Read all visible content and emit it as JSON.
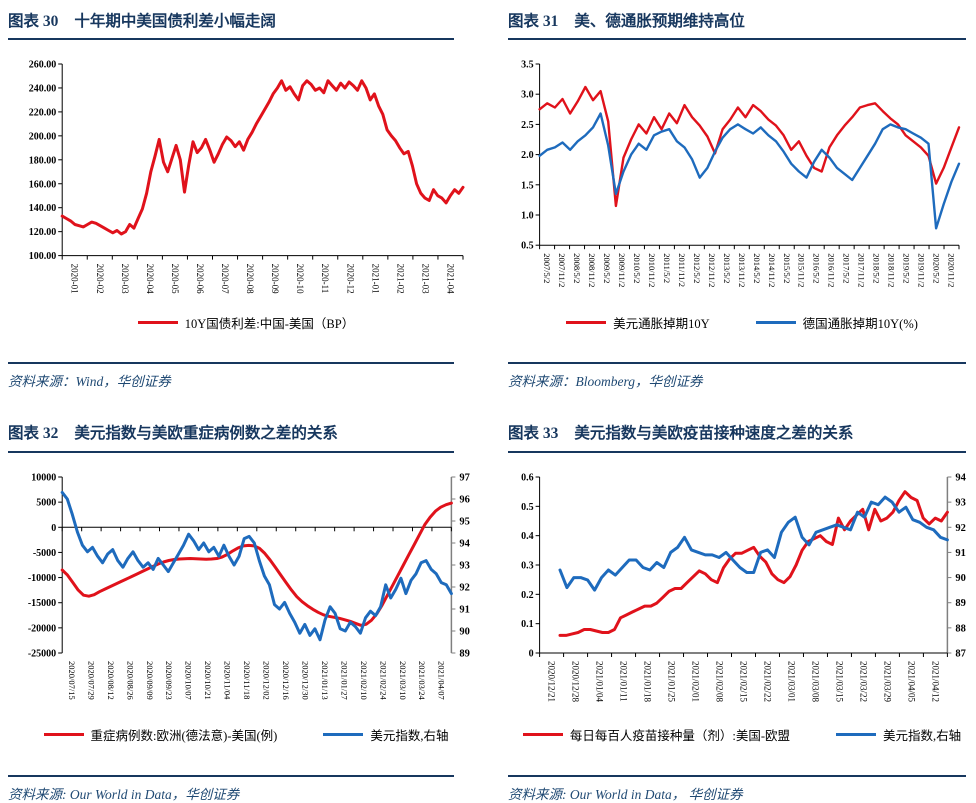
{
  "colors": {
    "title_navy": "#17375e",
    "source_navy": "#1f4973",
    "series_red": "#e0121b",
    "series_blue": "#1e6bbd",
    "right_axis_gray": "#7f7f7f"
  },
  "chart_data": [
    {
      "id": "c30",
      "type": "line",
      "panel_label": "图表 30",
      "title": "十年期中美国债利差小幅走阔",
      "source": "资料来源：Wind，华创证券",
      "legend_position": "bottom",
      "x_axis_at": "bottom",
      "x_tick_labels": [
        "2020-01",
        "2020-02",
        "2020-03",
        "2020-04",
        "2020-05",
        "2020-06",
        "2020-07",
        "2020-08",
        "2020-09",
        "2020-10",
        "2020-11",
        "2020-12",
        "2021-01",
        "2021-02",
        "2021-03",
        "2021-04"
      ],
      "y_left": {
        "min": 100,
        "max": 260,
        "step": 20,
        "labels": [
          "260.00",
          "240.00",
          "220.00",
          "200.00",
          "180.00",
          "160.00",
          "140.00",
          "120.00",
          "100.00"
        ]
      },
      "y_right": null,
      "series": [
        {
          "name": "10Y国债利差:中国-美国（BP）",
          "color": "#e0121b",
          "axis": "left",
          "width": 3,
          "values": [
            133,
            131,
            129,
            126,
            125,
            124,
            126,
            128,
            127,
            125,
            123,
            121,
            119,
            121,
            118,
            120,
            126,
            123,
            131,
            139,
            152,
            170,
            183,
            197,
            178,
            170,
            181,
            192,
            180,
            153,
            176,
            195,
            186,
            190,
            197,
            188,
            178,
            185,
            193,
            199,
            196,
            191,
            195,
            188,
            197,
            203,
            210,
            216,
            222,
            228,
            235,
            240,
            246,
            238,
            241,
            235,
            230,
            242,
            246,
            243,
            238,
            240,
            236,
            246,
            242,
            238,
            244,
            240,
            245,
            242,
            238,
            246,
            240,
            230,
            235,
            225,
            218,
            205,
            200,
            196,
            190,
            185,
            187,
            175,
            160,
            152,
            148,
            146,
            155,
            150,
            148,
            144,
            150,
            155,
            152,
            157
          ]
        }
      ]
    },
    {
      "id": "c31",
      "type": "line",
      "panel_label": "图表 31",
      "title": "美、德通胀预期维持高位",
      "source": "资料来源：Bloomberg，华创证券",
      "legend_position": "bottom",
      "x_axis_at": "bottom",
      "x_tick_labels": [
        "2007/5/2",
        "2007/11/2",
        "2008/5/2",
        "2008/11/2",
        "2009/5/2",
        "2009/11/2",
        "2010/5/2",
        "2010/11/2",
        "2011/5/2",
        "2011/11/2",
        "2012/5/2",
        "2012/11/2",
        "2013/5/2",
        "2013/11/2",
        "2014/5/2",
        "2014/11/2",
        "2015/5/2",
        "2015/11/2",
        "2016/5/2",
        "2016/11/2",
        "2017/5/2",
        "2017/11/2",
        "2018/5/2",
        "2018/11/2",
        "2019/5/2",
        "2019/11/2",
        "2020/5/2",
        "2020/11/2"
      ],
      "y_left": {
        "min": 0.5,
        "max": 3.5,
        "step": 0.5,
        "labels": [
          "3.5",
          "3.0",
          "2.5",
          "2.0",
          "1.5",
          "1.0",
          "0.5"
        ]
      },
      "y_right": null,
      "series": [
        {
          "name": "美元通胀掉期10Y",
          "color": "#e0121b",
          "axis": "left",
          "width": 2.4,
          "values": [
            2.75,
            2.85,
            2.78,
            2.92,
            2.68,
            2.88,
            3.12,
            2.9,
            3.05,
            2.55,
            1.15,
            1.95,
            2.25,
            2.5,
            2.35,
            2.62,
            2.42,
            2.68,
            2.52,
            2.82,
            2.62,
            2.48,
            2.3,
            2.02,
            2.42,
            2.58,
            2.78,
            2.62,
            2.82,
            2.72,
            2.58,
            2.48,
            2.32,
            2.08,
            2.22,
            1.98,
            1.78,
            1.72,
            2.12,
            2.32,
            2.48,
            2.62,
            2.78,
            2.82,
            2.85,
            2.72,
            2.6,
            2.5,
            2.32,
            2.22,
            2.12,
            1.98,
            1.52,
            1.78,
            2.12,
            2.45
          ]
        },
        {
          "name": "德国通胀掉期10Y(%)",
          "color": "#1e6bbd",
          "axis": "left",
          "width": 2.4,
          "values": [
            1.98,
            2.08,
            2.12,
            2.2,
            2.08,
            2.22,
            2.32,
            2.45,
            2.68,
            2.15,
            1.35,
            1.72,
            2.0,
            2.18,
            2.08,
            2.32,
            2.38,
            2.42,
            2.22,
            2.12,
            1.92,
            1.62,
            1.78,
            2.05,
            2.28,
            2.42,
            2.5,
            2.42,
            2.35,
            2.45,
            2.32,
            2.22,
            2.05,
            1.85,
            1.72,
            1.62,
            1.88,
            2.08,
            1.95,
            1.78,
            1.68,
            1.58,
            1.78,
            1.98,
            2.18,
            2.42,
            2.5,
            2.45,
            2.42,
            2.35,
            2.28,
            2.18,
            0.78,
            1.18,
            1.55,
            1.85
          ]
        }
      ]
    },
    {
      "id": "c32",
      "type": "line",
      "panel_label": "图表 32",
      "title": "美元指数与美欧重症病例数之差的关系",
      "source": "资料来源: Our World in Data，华创证券",
      "legend_position": "bottom",
      "x_axis_at": "zero",
      "x_tick_labels": [
        "2020/07/15",
        "2020/07/29",
        "2020/08/12",
        "2020/08/26",
        "2020/09/09",
        "2020/09/23",
        "2020/10/07",
        "2020/10/21",
        "2020/11/04",
        "2020/11/18",
        "2020/12/02",
        "2020/12/16",
        "2020/12/30",
        "2021/01/13",
        "2021/01/27",
        "2021/02/10",
        "2021/02/24",
        "2021/03/10",
        "2021/03/24",
        "2021/04/07"
      ],
      "y_left": {
        "min": -25000,
        "max": 10000,
        "step": 5000,
        "labels": [
          "10000",
          "5000",
          "0",
          "-5000",
          "-10000",
          "-15000",
          "-20000",
          "-25000"
        ]
      },
      "y_right": {
        "min": 89,
        "max": 97,
        "step": 1,
        "labels": [
          "97",
          "96",
          "95",
          "94",
          "93",
          "92",
          "91",
          "90",
          "89"
        ]
      },
      "series": [
        {
          "name": "重症病例数:欧洲(德法意)-美国(例)",
          "color": "#e0121b",
          "axis": "left",
          "width": 3,
          "values": [
            -8500,
            -9500,
            -11000,
            -12500,
            -13500,
            -13700,
            -13400,
            -12800,
            -12300,
            -11800,
            -11300,
            -10800,
            -10300,
            -9800,
            -9300,
            -8800,
            -8300,
            -7800,
            -7300,
            -6900,
            -6600,
            -6400,
            -6300,
            -6250,
            -6200,
            -6250,
            -6300,
            -6350,
            -6300,
            -6200,
            -5900,
            -5400,
            -4700,
            -4100,
            -3700,
            -3600,
            -3700,
            -4200,
            -5200,
            -6500,
            -8000,
            -9500,
            -11000,
            -12500,
            -13800,
            -14800,
            -15600,
            -16300,
            -16900,
            -17400,
            -17700,
            -17900,
            -18100,
            -18400,
            -18700,
            -19100,
            -19500,
            -19300,
            -18500,
            -17200,
            -15500,
            -13500,
            -11500,
            -9500,
            -7500,
            -5500,
            -3500,
            -1500,
            500,
            2000,
            3200,
            4000,
            4500,
            4800
          ]
        },
        {
          "name": "美元指数,右轴",
          "color": "#1e6bbd",
          "axis": "right",
          "width": 3,
          "values": [
            96.3,
            96.0,
            95.3,
            94.5,
            93.9,
            93.6,
            93.8,
            93.4,
            93.1,
            93.5,
            93.7,
            93.2,
            92.9,
            93.3,
            93.6,
            93.2,
            92.9,
            93.1,
            92.8,
            93.3,
            93.0,
            92.7,
            93.1,
            93.5,
            93.9,
            94.4,
            94.1,
            93.7,
            94.0,
            93.6,
            93.8,
            93.4,
            93.9,
            93.4,
            93.0,
            93.4,
            94.2,
            94.3,
            94.0,
            93.2,
            92.5,
            92.1,
            91.2,
            91.0,
            91.3,
            90.8,
            90.4,
            89.9,
            90.3,
            89.8,
            90.1,
            89.6,
            90.5,
            91.1,
            90.8,
            90.1,
            90.0,
            90.4,
            90.2,
            89.9,
            90.6,
            90.9,
            90.7,
            91.1,
            92.1,
            91.5,
            91.9,
            92.4,
            91.7,
            92.3,
            92.6,
            93.1,
            93.2,
            92.8,
            92.6,
            92.2,
            92.1,
            91.7
          ]
        }
      ]
    },
    {
      "id": "c33",
      "type": "line",
      "panel_label": "图表 33",
      "title": "美元指数与美欧疫苗接种速度之差的关系",
      "source": "资料来源: Our World in Data， 华创证券",
      "legend_position": "bottom",
      "x_axis_at": "bottom",
      "x_tick_labels": [
        "2020/12/21",
        "2020/12/28",
        "2021/01/04",
        "2021/01/11",
        "2021/01/18",
        "2021/01/25",
        "2021/02/01",
        "2021/02/08",
        "2021/02/15",
        "2021/02/22",
        "2021/03/01",
        "2021/03/08",
        "2021/03/15",
        "2021/03/22",
        "2021/03/29",
        "2021/04/05",
        "2021/04/12"
      ],
      "y_left": {
        "min": 0,
        "max": 0.6,
        "step": 0.1,
        "labels": [
          "0.6",
          "0.5",
          "0.4",
          "0.3",
          "0.2",
          "0.1",
          "0"
        ]
      },
      "y_right": {
        "min": 87,
        "max": 94,
        "step": 1,
        "labels": [
          "94",
          "93",
          "92",
          "91",
          "90",
          "89",
          "88",
          "87"
        ]
      },
      "series": [
        {
          "name": "每日每百人疫苗接种量（剂）:美国-欧盟",
          "color": "#e0121b",
          "axis": "left",
          "width": 3,
          "pad_start": 0.05,
          "values": [
            0.06,
            0.06,
            0.065,
            0.07,
            0.08,
            0.08,
            0.075,
            0.07,
            0.07,
            0.08,
            0.12,
            0.13,
            0.14,
            0.15,
            0.16,
            0.16,
            0.17,
            0.19,
            0.21,
            0.22,
            0.22,
            0.24,
            0.26,
            0.28,
            0.27,
            0.25,
            0.24,
            0.29,
            0.32,
            0.34,
            0.34,
            0.35,
            0.36,
            0.33,
            0.31,
            0.27,
            0.25,
            0.24,
            0.26,
            0.3,
            0.35,
            0.38,
            0.39,
            0.4,
            0.38,
            0.37,
            0.46,
            0.42,
            0.45,
            0.47,
            0.49,
            0.42,
            0.49,
            0.45,
            0.46,
            0.48,
            0.52,
            0.55,
            0.53,
            0.52,
            0.46,
            0.44,
            0.46,
            0.45,
            0.48
          ]
        },
        {
          "name": "美元指数,右轴",
          "color": "#1e6bbd",
          "axis": "right",
          "width": 3,
          "pad_start": 0.05,
          "values": [
            90.3,
            89.6,
            90.0,
            90.0,
            89.9,
            89.5,
            90.0,
            90.3,
            90.1,
            90.4,
            90.7,
            90.7,
            90.4,
            90.3,
            90.6,
            90.4,
            91.0,
            91.2,
            91.6,
            91.1,
            91.0,
            90.9,
            90.9,
            90.8,
            91.0,
            90.7,
            90.4,
            90.2,
            90.2,
            91.0,
            91.1,
            90.8,
            91.8,
            92.2,
            92.4,
            91.6,
            91.3,
            91.8,
            91.9,
            92.0,
            92.1,
            92.0,
            91.9,
            92.6,
            92.4,
            93.0,
            92.9,
            93.2,
            93.0,
            92.6,
            92.8,
            92.3,
            92.2,
            92.0,
            91.9,
            91.6,
            91.5
          ]
        }
      ]
    }
  ]
}
